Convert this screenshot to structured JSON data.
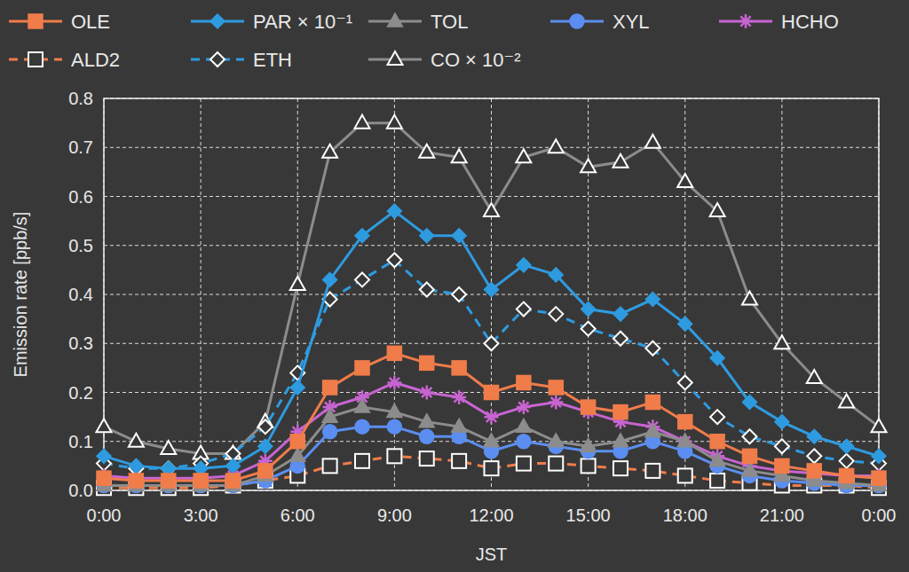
{
  "chart_data": {
    "type": "line",
    "x_label": "JST",
    "y_label": "Emission rate [ppb/s]",
    "categories": [
      "0:00",
      null,
      null,
      "3:00",
      null,
      null,
      "6:00",
      null,
      null,
      "9:00",
      null,
      null,
      "12:00",
      null,
      null,
      "15:00",
      null,
      null,
      "18:00",
      null,
      null,
      "21:00",
      null,
      null,
      "0:00"
    ],
    "ylim": [
      0,
      0.8
    ],
    "yticks": [
      {
        "value": 0,
        "label": "0.0"
      },
      0.1,
      0.2,
      0.3,
      0.4,
      0.5,
      0.6,
      0.7,
      0.8
    ],
    "grid": true,
    "legend": "top",
    "series": [
      {
        "name": "OLE",
        "color": "#f07c4a",
        "marker": "square",
        "line_style": "solid",
        "values": [
          0.025,
          0.02,
          0.02,
          0.02,
          0.02,
          0.04,
          0.1,
          0.21,
          0.25,
          0.28,
          0.26,
          0.25,
          0.2,
          0.22,
          0.21,
          0.17,
          0.16,
          0.18,
          0.14,
          0.1,
          0.07,
          0.05,
          0.04,
          0.03,
          0.025
        ]
      },
      {
        "name": "PAR × 10⁻¹",
        "color": "#2e9be0",
        "marker": "diamond",
        "line_style": "solid",
        "values": [
          0.07,
          0.05,
          0.045,
          0.045,
          0.05,
          0.09,
          0.21,
          0.43,
          0.52,
          0.57,
          0.52,
          0.52,
          0.41,
          0.46,
          0.44,
          0.37,
          0.36,
          0.39,
          0.34,
          0.27,
          0.18,
          0.14,
          0.11,
          0.09,
          0.07
        ]
      },
      {
        "name": "TOL",
        "color": "#8c8c8c",
        "marker": "triangle",
        "line_style": "solid",
        "values": [
          0.01,
          0.01,
          0.01,
          0.01,
          0.01,
          0.03,
          0.07,
          0.15,
          0.17,
          0.16,
          0.14,
          0.13,
          0.1,
          0.13,
          0.1,
          0.09,
          0.1,
          0.12,
          0.1,
          0.06,
          0.04,
          0.03,
          0.02,
          0.015,
          0.01
        ]
      },
      {
        "name": "XYL",
        "color": "#5b8ef0",
        "marker": "circle",
        "line_style": "solid",
        "values": [
          0.01,
          0.01,
          0.01,
          0.01,
          0.01,
          0.02,
          0.05,
          0.12,
          0.13,
          0.13,
          0.11,
          0.11,
          0.08,
          0.1,
          0.09,
          0.08,
          0.08,
          0.1,
          0.08,
          0.05,
          0.03,
          0.02,
          0.015,
          0.01,
          0.01
        ]
      },
      {
        "name": "HCHO",
        "color": "#c864d2",
        "marker": "asterisk",
        "line_style": "solid",
        "values": [
          0.03,
          0.025,
          0.025,
          0.025,
          0.03,
          0.06,
          0.12,
          0.17,
          0.19,
          0.22,
          0.2,
          0.19,
          0.15,
          0.17,
          0.18,
          0.16,
          0.14,
          0.13,
          0.1,
          0.07,
          0.05,
          0.04,
          0.035,
          0.03,
          0.03
        ]
      },
      {
        "name": "ALD2",
        "color": "#f07c4a",
        "marker": "open-square",
        "line_style": "dashed",
        "values": [
          0.005,
          0.005,
          0.005,
          0.005,
          0.01,
          0.02,
          0.03,
          0.05,
          0.06,
          0.07,
          0.065,
          0.06,
          0.045,
          0.055,
          0.055,
          0.05,
          0.045,
          0.04,
          0.03,
          0.02,
          0.015,
          0.01,
          0.01,
          0.01,
          0.005
        ]
      },
      {
        "name": "ETH",
        "color": "#2e9be0",
        "marker": "open-diamond",
        "line_style": "dashed",
        "values": [
          0.055,
          0.045,
          0.045,
          0.055,
          0.075,
          0.13,
          0.24,
          0.39,
          0.43,
          0.47,
          0.41,
          0.4,
          0.3,
          0.37,
          0.36,
          0.33,
          0.31,
          0.29,
          0.22,
          0.15,
          0.11,
          0.09,
          0.07,
          0.06,
          0.055
        ]
      },
      {
        "name": "CO × 10⁻²",
        "color": "#8c8c8c",
        "marker": "open-triangle",
        "line_style": "solid",
        "values": [
          0.13,
          0.1,
          0.085,
          0.075,
          0.075,
          0.14,
          0.42,
          0.69,
          0.75,
          0.75,
          0.69,
          0.68,
          0.57,
          0.68,
          0.7,
          0.66,
          0.67,
          0.71,
          0.63,
          0.57,
          0.39,
          0.3,
          0.23,
          0.18,
          0.13
        ]
      }
    ]
  }
}
